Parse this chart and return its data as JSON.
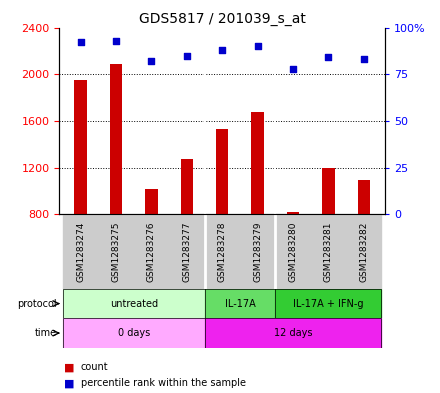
{
  "title": "GDS5817 / 201039_s_at",
  "samples": [
    "GSM1283274",
    "GSM1283275",
    "GSM1283276",
    "GSM1283277",
    "GSM1283278",
    "GSM1283279",
    "GSM1283280",
    "GSM1283281",
    "GSM1283282"
  ],
  "counts": [
    1950,
    2090,
    1020,
    1270,
    1530,
    1680,
    820,
    1200,
    1090
  ],
  "percentiles": [
    92,
    93,
    82,
    85,
    88,
    90,
    78,
    84,
    83
  ],
  "ylim_left": [
    800,
    2400
  ],
  "ylim_right": [
    0,
    100
  ],
  "yticks_left": [
    800,
    1200,
    1600,
    2000,
    2400
  ],
  "yticks_right": [
    0,
    25,
    50,
    75,
    100
  ],
  "ytick_labels_right": [
    "0",
    "25",
    "50",
    "75",
    "100%"
  ],
  "bar_color": "#cc0000",
  "dot_color": "#0000cc",
  "protocol_groups": [
    {
      "label": "untreated",
      "start": 0,
      "end": 4,
      "color": "#ccffcc"
    },
    {
      "label": "IL-17A",
      "start": 4,
      "end": 6,
      "color": "#66dd66"
    },
    {
      "label": "IL-17A + IFN-g",
      "start": 6,
      "end": 9,
      "color": "#33cc33"
    }
  ],
  "time_groups": [
    {
      "label": "0 days",
      "start": 0,
      "end": 4,
      "color": "#ffaaff"
    },
    {
      "label": "12 days",
      "start": 4,
      "end": 9,
      "color": "#ee22ee"
    }
  ],
  "sample_bg_color": "#cccccc",
  "bar_width": 0.35,
  "dot_size": 25,
  "title_fontsize": 10,
  "axis_tick_fontsize": 8,
  "label_fontsize": 7,
  "sample_fontsize": 6.5,
  "legend_fontsize": 7
}
